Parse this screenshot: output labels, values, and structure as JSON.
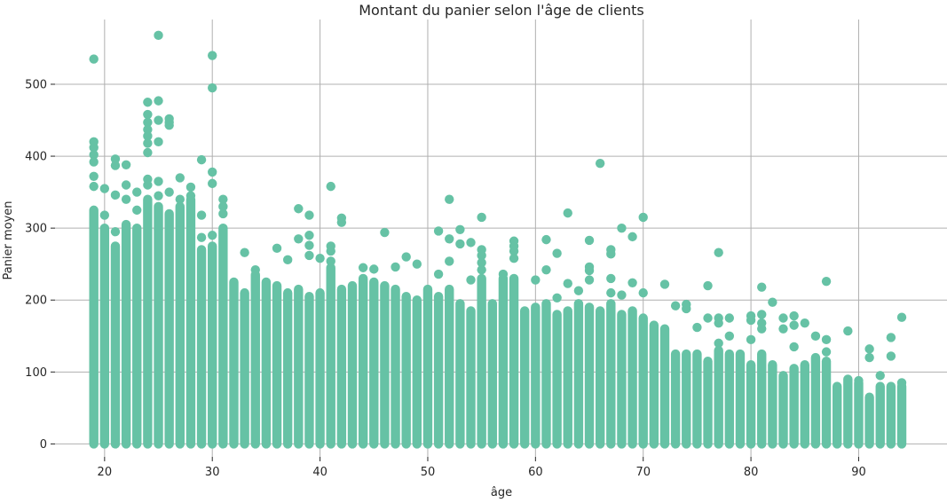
{
  "chart_data": {
    "type": "scatter",
    "title": "Montant du panier selon l'âge de clients",
    "xlabel": "âge",
    "ylabel": "Panier moyen",
    "xlim": [
      15.4,
      98.2
    ],
    "ylim": [
      -18,
      590
    ],
    "xticks": [
      20,
      30,
      40,
      50,
      60,
      70,
      80,
      90
    ],
    "yticks": [
      0,
      100,
      200,
      300,
      400,
      500
    ],
    "grid": true,
    "legend": "none",
    "color": "#66c2a5",
    "columns": [
      {
        "x": 19,
        "max": 325
      },
      {
        "x": 20,
        "max": 300
      },
      {
        "x": 21,
        "max": 275
      },
      {
        "x": 22,
        "max": 305
      },
      {
        "x": 23,
        "max": 300
      },
      {
        "x": 24,
        "max": 340
      },
      {
        "x": 25,
        "max": 330
      },
      {
        "x": 26,
        "max": 320
      },
      {
        "x": 27,
        "max": 330
      },
      {
        "x": 28,
        "max": 340
      },
      {
        "x": 29,
        "max": 270
      },
      {
        "x": 30,
        "max": 275
      },
      {
        "x": 31,
        "max": 300
      },
      {
        "x": 32,
        "max": 225
      },
      {
        "x": 33,
        "max": 210
      },
      {
        "x": 34,
        "max": 235
      },
      {
        "x": 35,
        "max": 225
      },
      {
        "x": 36,
        "max": 220
      },
      {
        "x": 37,
        "max": 210
      },
      {
        "x": 38,
        "max": 215
      },
      {
        "x": 39,
        "max": 205
      },
      {
        "x": 40,
        "max": 210
      },
      {
        "x": 41,
        "max": 245
      },
      {
        "x": 42,
        "max": 215
      },
      {
        "x": 43,
        "max": 220
      },
      {
        "x": 44,
        "max": 230
      },
      {
        "x": 45,
        "max": 225
      },
      {
        "x": 46,
        "max": 220
      },
      {
        "x": 47,
        "max": 215
      },
      {
        "x": 48,
        "max": 205
      },
      {
        "x": 49,
        "max": 200
      },
      {
        "x": 50,
        "max": 215
      },
      {
        "x": 51,
        "max": 205
      },
      {
        "x": 52,
        "max": 215
      },
      {
        "x": 53,
        "max": 195
      },
      {
        "x": 54,
        "max": 185
      },
      {
        "x": 55,
        "max": 230
      },
      {
        "x": 56,
        "max": 195
      },
      {
        "x": 57,
        "max": 230
      },
      {
        "x": 58,
        "max": 230
      },
      {
        "x": 59,
        "max": 185
      },
      {
        "x": 60,
        "max": 190
      },
      {
        "x": 61,
        "max": 195
      },
      {
        "x": 62,
        "max": 180
      },
      {
        "x": 63,
        "max": 185
      },
      {
        "x": 64,
        "max": 195
      },
      {
        "x": 65,
        "max": 190
      },
      {
        "x": 66,
        "max": 185
      },
      {
        "x": 67,
        "max": 195
      },
      {
        "x": 68,
        "max": 180
      },
      {
        "x": 69,
        "max": 185
      },
      {
        "x": 70,
        "max": 175
      },
      {
        "x": 71,
        "max": 165
      },
      {
        "x": 72,
        "max": 160
      },
      {
        "x": 73,
        "max": 125
      },
      {
        "x": 74,
        "max": 125
      },
      {
        "x": 75,
        "max": 125
      },
      {
        "x": 76,
        "max": 115
      },
      {
        "x": 77,
        "max": 130
      },
      {
        "x": 78,
        "max": 125
      },
      {
        "x": 79,
        "max": 125
      },
      {
        "x": 80,
        "max": 110
      },
      {
        "x": 81,
        "max": 125
      },
      {
        "x": 82,
        "max": 110
      },
      {
        "x": 83,
        "max": 95
      },
      {
        "x": 84,
        "max": 105
      },
      {
        "x": 85,
        "max": 110
      },
      {
        "x": 86,
        "max": 120
      },
      {
        "x": 87,
        "max": 115
      },
      {
        "x": 88,
        "max": 80
      },
      {
        "x": 89,
        "max": 90
      },
      {
        "x": 90,
        "max": 85
      },
      {
        "x": 91,
        "max": 65
      },
      {
        "x": 92,
        "max": 80
      },
      {
        "x": 93,
        "max": 80
      },
      {
        "x": 94,
        "max": 80
      }
    ],
    "outliers": [
      {
        "x": 19,
        "y": 535
      },
      {
        "x": 19,
        "y": 420
      },
      {
        "x": 19,
        "y": 412
      },
      {
        "x": 19,
        "y": 402
      },
      {
        "x": 19,
        "y": 392
      },
      {
        "x": 19,
        "y": 372
      },
      {
        "x": 19,
        "y": 358
      },
      {
        "x": 20,
        "y": 355
      },
      {
        "x": 20,
        "y": 318
      },
      {
        "x": 21,
        "y": 396
      },
      {
        "x": 21,
        "y": 387
      },
      {
        "x": 21,
        "y": 346
      },
      {
        "x": 21,
        "y": 295
      },
      {
        "x": 22,
        "y": 388
      },
      {
        "x": 22,
        "y": 360
      },
      {
        "x": 22,
        "y": 340
      },
      {
        "x": 23,
        "y": 350
      },
      {
        "x": 23,
        "y": 325
      },
      {
        "x": 24,
        "y": 475
      },
      {
        "x": 24,
        "y": 458
      },
      {
        "x": 24,
        "y": 447
      },
      {
        "x": 24,
        "y": 437
      },
      {
        "x": 24,
        "y": 428
      },
      {
        "x": 24,
        "y": 418
      },
      {
        "x": 24,
        "y": 405
      },
      {
        "x": 24,
        "y": 368
      },
      {
        "x": 24,
        "y": 360
      },
      {
        "x": 25,
        "y": 568
      },
      {
        "x": 25,
        "y": 477
      },
      {
        "x": 25,
        "y": 450
      },
      {
        "x": 25,
        "y": 420
      },
      {
        "x": 25,
        "y": 365
      },
      {
        "x": 25,
        "y": 345
      },
      {
        "x": 25,
        "y": 298
      },
      {
        "x": 26,
        "y": 452
      },
      {
        "x": 26,
        "y": 447
      },
      {
        "x": 26,
        "y": 443
      },
      {
        "x": 26,
        "y": 350
      },
      {
        "x": 27,
        "y": 370
      },
      {
        "x": 27,
        "y": 340
      },
      {
        "x": 28,
        "y": 357
      },
      {
        "x": 28,
        "y": 345
      },
      {
        "x": 29,
        "y": 395
      },
      {
        "x": 29,
        "y": 318
      },
      {
        "x": 29,
        "y": 287
      },
      {
        "x": 30,
        "y": 540
      },
      {
        "x": 30,
        "y": 495
      },
      {
        "x": 30,
        "y": 378
      },
      {
        "x": 30,
        "y": 362
      },
      {
        "x": 30,
        "y": 290
      },
      {
        "x": 31,
        "y": 340
      },
      {
        "x": 31,
        "y": 330
      },
      {
        "x": 31,
        "y": 320
      },
      {
        "x": 33,
        "y": 266
      },
      {
        "x": 34,
        "y": 242
      },
      {
        "x": 36,
        "y": 272
      },
      {
        "x": 37,
        "y": 256
      },
      {
        "x": 38,
        "y": 327
      },
      {
        "x": 38,
        "y": 285
      },
      {
        "x": 39,
        "y": 318
      },
      {
        "x": 39,
        "y": 290
      },
      {
        "x": 39,
        "y": 276
      },
      {
        "x": 39,
        "y": 262
      },
      {
        "x": 40,
        "y": 258
      },
      {
        "x": 41,
        "y": 358
      },
      {
        "x": 41,
        "y": 275
      },
      {
        "x": 41,
        "y": 268
      },
      {
        "x": 41,
        "y": 254
      },
      {
        "x": 42,
        "y": 314
      },
      {
        "x": 42,
        "y": 308
      },
      {
        "x": 44,
        "y": 245
      },
      {
        "x": 45,
        "y": 243
      },
      {
        "x": 46,
        "y": 294
      },
      {
        "x": 47,
        "y": 246
      },
      {
        "x": 48,
        "y": 260
      },
      {
        "x": 49,
        "y": 250
      },
      {
        "x": 51,
        "y": 296
      },
      {
        "x": 51,
        "y": 236
      },
      {
        "x": 52,
        "y": 340
      },
      {
        "x": 52,
        "y": 285
      },
      {
        "x": 52,
        "y": 254
      },
      {
        "x": 53,
        "y": 298
      },
      {
        "x": 53,
        "y": 278
      },
      {
        "x": 54,
        "y": 280
      },
      {
        "x": 54,
        "y": 228
      },
      {
        "x": 55,
        "y": 315
      },
      {
        "x": 55,
        "y": 270
      },
      {
        "x": 55,
        "y": 262
      },
      {
        "x": 55,
        "y": 252
      },
      {
        "x": 55,
        "y": 242
      },
      {
        "x": 57,
        "y": 236
      },
      {
        "x": 58,
        "y": 282
      },
      {
        "x": 58,
        "y": 275
      },
      {
        "x": 58,
        "y": 268
      },
      {
        "x": 58,
        "y": 258
      },
      {
        "x": 60,
        "y": 228
      },
      {
        "x": 61,
        "y": 284
      },
      {
        "x": 61,
        "y": 242
      },
      {
        "x": 62,
        "y": 265
      },
      {
        "x": 62,
        "y": 203
      },
      {
        "x": 63,
        "y": 321
      },
      {
        "x": 63,
        "y": 223
      },
      {
        "x": 64,
        "y": 213
      },
      {
        "x": 65,
        "y": 283
      },
      {
        "x": 65,
        "y": 246
      },
      {
        "x": 65,
        "y": 241
      },
      {
        "x": 65,
        "y": 228
      },
      {
        "x": 66,
        "y": 390
      },
      {
        "x": 67,
        "y": 270
      },
      {
        "x": 67,
        "y": 264
      },
      {
        "x": 67,
        "y": 230
      },
      {
        "x": 67,
        "y": 210
      },
      {
        "x": 68,
        "y": 300
      },
      {
        "x": 68,
        "y": 207
      },
      {
        "x": 69,
        "y": 288
      },
      {
        "x": 69,
        "y": 224
      },
      {
        "x": 70,
        "y": 315
      },
      {
        "x": 70,
        "y": 210
      },
      {
        "x": 72,
        "y": 222
      },
      {
        "x": 73,
        "y": 192
      },
      {
        "x": 74,
        "y": 194
      },
      {
        "x": 74,
        "y": 188
      },
      {
        "x": 75,
        "y": 162
      },
      {
        "x": 76,
        "y": 220
      },
      {
        "x": 76,
        "y": 175
      },
      {
        "x": 77,
        "y": 266
      },
      {
        "x": 77,
        "y": 175
      },
      {
        "x": 77,
        "y": 168
      },
      {
        "x": 77,
        "y": 140
      },
      {
        "x": 78,
        "y": 175
      },
      {
        "x": 78,
        "y": 150
      },
      {
        "x": 80,
        "y": 178
      },
      {
        "x": 80,
        "y": 172
      },
      {
        "x": 80,
        "y": 145
      },
      {
        "x": 81,
        "y": 218
      },
      {
        "x": 81,
        "y": 180
      },
      {
        "x": 81,
        "y": 168
      },
      {
        "x": 81,
        "y": 160
      },
      {
        "x": 82,
        "y": 197
      },
      {
        "x": 83,
        "y": 175
      },
      {
        "x": 83,
        "y": 160
      },
      {
        "x": 84,
        "y": 178
      },
      {
        "x": 84,
        "y": 165
      },
      {
        "x": 84,
        "y": 135
      },
      {
        "x": 85,
        "y": 168
      },
      {
        "x": 86,
        "y": 150
      },
      {
        "x": 87,
        "y": 226
      },
      {
        "x": 87,
        "y": 145
      },
      {
        "x": 87,
        "y": 128
      },
      {
        "x": 89,
        "y": 157
      },
      {
        "x": 90,
        "y": 88
      },
      {
        "x": 91,
        "y": 132
      },
      {
        "x": 91,
        "y": 120
      },
      {
        "x": 92,
        "y": 95
      },
      {
        "x": 93,
        "y": 148
      },
      {
        "x": 93,
        "y": 122
      },
      {
        "x": 94,
        "y": 176
      },
      {
        "x": 94,
        "y": 85
      }
    ]
  }
}
